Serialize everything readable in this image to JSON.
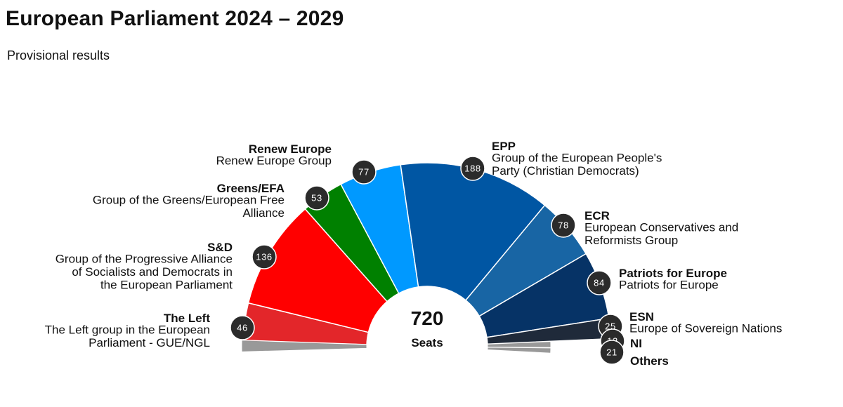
{
  "header": {
    "title": "European Parliament 2024 – 2029",
    "subtitle": "Provisional results"
  },
  "chart_data": {
    "type": "parliament-semicircle",
    "title": "European Parliament 2024 – 2029",
    "subtitle": "Provisional results",
    "total_seats": 720,
    "total_label": "Seats",
    "total_value_label": "720",
    "groups": [
      {
        "id": "left",
        "abbr": "The Left",
        "full": "The Left group in the European Parliament - GUE/NGL",
        "seats": 46,
        "seats_label": "46",
        "color": "#e3262a"
      },
      {
        "id": "sd",
        "abbr": "S&D",
        "full": "Group of the Progressive Alliance of Socialists and Democrats in the European Parliament",
        "seats": 136,
        "seats_label": "136",
        "color": "#ff0000"
      },
      {
        "id": "greens",
        "abbr": "Greens/EFA",
        "full": "Group of the Greens/European Free Alliance",
        "seats": 53,
        "seats_label": "53",
        "color": "#008000"
      },
      {
        "id": "renew",
        "abbr": "Renew Europe",
        "full": "Renew Europe Group",
        "seats": 77,
        "seats_label": "77",
        "color": "#0099ff"
      },
      {
        "id": "epp",
        "abbr": "EPP",
        "full": "Group of the European People's Party (Christian Democrats)",
        "seats": 188,
        "seats_label": "188",
        "color": "#0056a3"
      },
      {
        "id": "ecr",
        "abbr": "ECR",
        "full": "European Conservatives and Reformists Group",
        "seats": 78,
        "seats_label": "78",
        "color": "#1865a4"
      },
      {
        "id": "pfe",
        "abbr": "Patriots for Europe",
        "full": "Patriots for Europe",
        "seats": 84,
        "seats_label": "84",
        "color": "#063366"
      },
      {
        "id": "esn",
        "abbr": "ESN",
        "full": "Europe of Sovereign Nations",
        "seats": 25,
        "seats_label": "25",
        "color": "#1f2a3a"
      },
      {
        "id": "ni",
        "abbr": "NI",
        "full": "",
        "seats": 12,
        "seats_label": "12",
        "color": "#999999"
      },
      {
        "id": "others",
        "abbr": "Others",
        "full": "",
        "seats": 21,
        "seats_label": "21",
        "color": "#999999"
      }
    ]
  },
  "colors": {
    "badge_fill": "#2b2b2b",
    "badge_stroke": "#ffffff",
    "segment_stroke": "#ffffff"
  }
}
